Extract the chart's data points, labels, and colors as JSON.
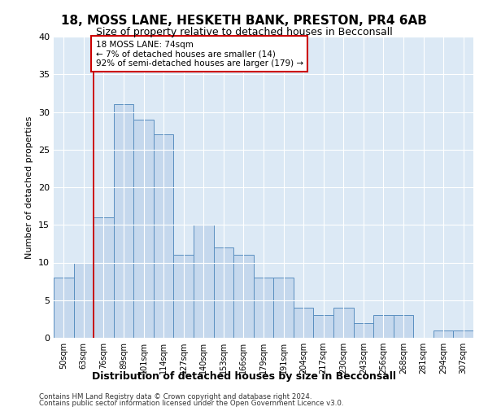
{
  "title": "18, MOSS LANE, HESKETH BANK, PRESTON, PR4 6AB",
  "subtitle": "Size of property relative to detached houses in Becconsall",
  "xlabel": "Distribution of detached houses by size in Becconsall",
  "ylabel": "Number of detached properties",
  "bar_labels": [
    "50sqm",
    "63sqm",
    "76sqm",
    "89sqm",
    "101sqm",
    "114sqm",
    "127sqm",
    "140sqm",
    "153sqm",
    "166sqm",
    "179sqm",
    "191sqm",
    "204sqm",
    "217sqm",
    "230sqm",
    "243sqm",
    "256sqm",
    "268sqm",
    "281sqm",
    "294sqm",
    "307sqm"
  ],
  "bar_values": [
    8,
    10,
    16,
    31,
    29,
    27,
    11,
    15,
    12,
    11,
    8,
    8,
    4,
    3,
    4,
    2,
    3,
    3,
    0,
    1,
    1
  ],
  "bar_color": "#c5d8ed",
  "bar_edge_color": "#5a8fc0",
  "background_color": "#dce9f5",
  "ylim": [
    0,
    40
  ],
  "yticks": [
    0,
    5,
    10,
    15,
    20,
    25,
    30,
    35,
    40
  ],
  "property_line_color": "#cc0000",
  "annotation_title": "18 MOSS LANE: 74sqm",
  "annotation_line1": "← 7% of detached houses are smaller (14)",
  "annotation_line2": "92% of semi-detached houses are larger (179) →",
  "annotation_box_color": "#ffffff",
  "annotation_box_edge": "#cc0000",
  "footer_line1": "Contains HM Land Registry data © Crown copyright and database right 2024.",
  "footer_line2": "Contains public sector information licensed under the Open Government Licence v3.0."
}
